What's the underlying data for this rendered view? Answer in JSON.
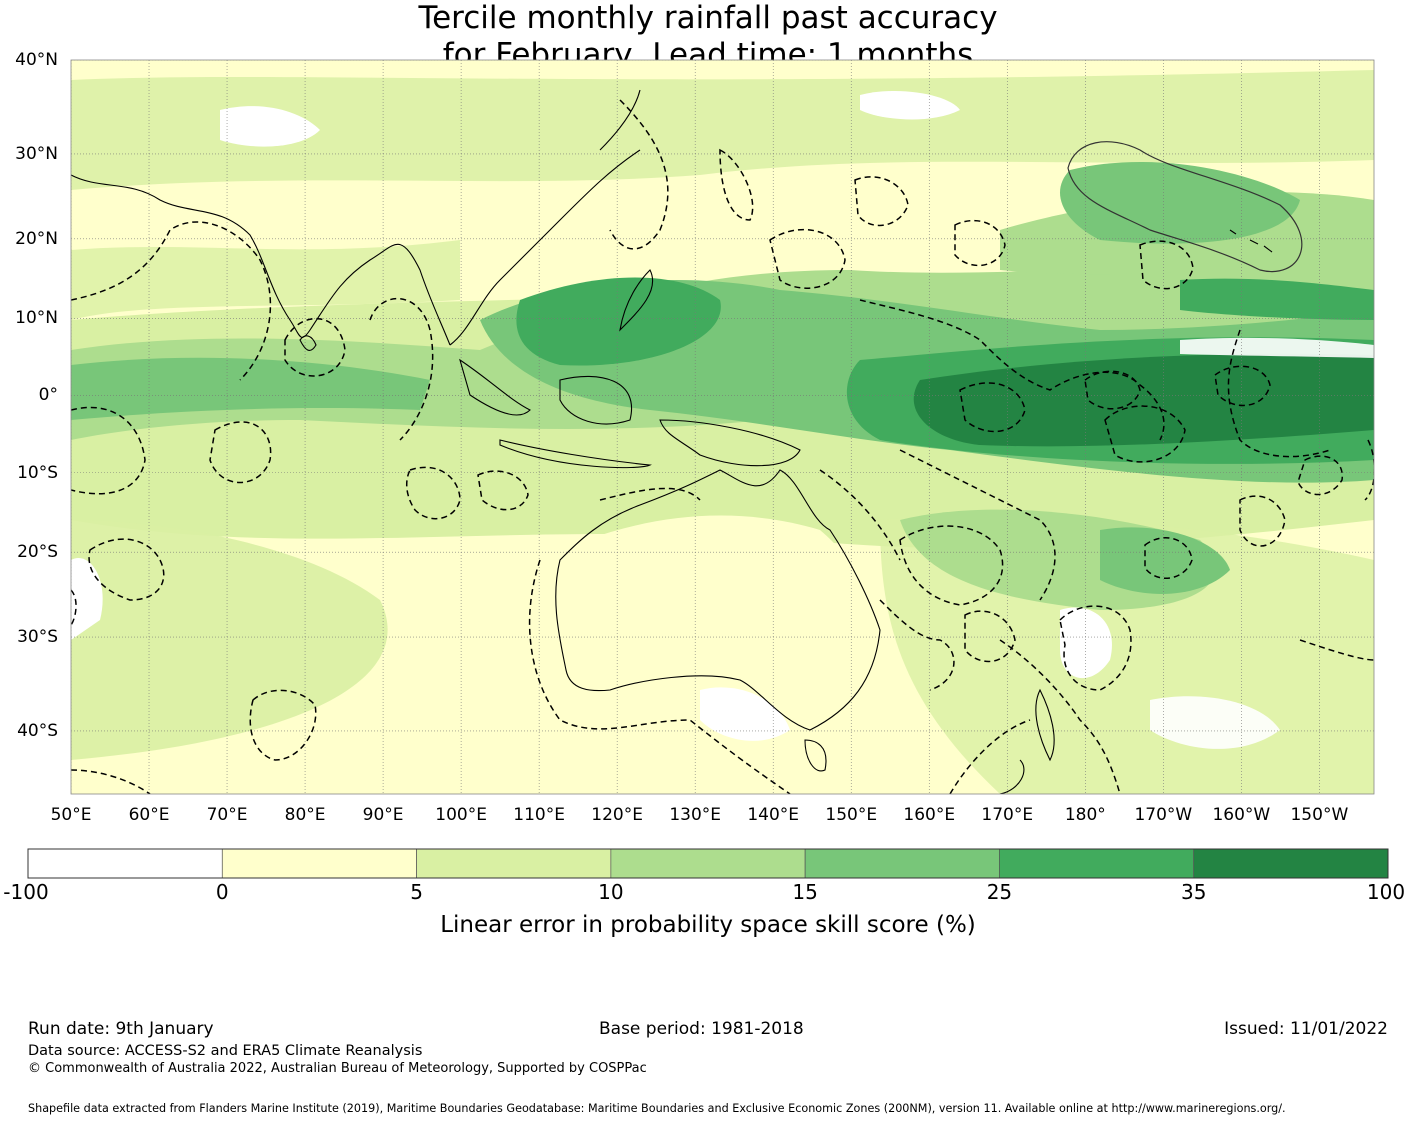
{
  "title": {
    "line1": "Tercile monthly rainfall past accuracy",
    "line2": "for February, Lead time: 1 months"
  },
  "axes": {
    "lat_labels": [
      "40°N",
      "30°N",
      "20°N",
      "10°N",
      "0°",
      "10°S",
      "20°S",
      "30°S",
      "40°S"
    ],
    "lat_values": [
      40,
      30,
      20,
      10,
      0,
      -10,
      -20,
      -30,
      -40
    ],
    "lon_labels": [
      "50°E",
      "60°E",
      "70°E",
      "80°E",
      "90°E",
      "100°E",
      "110°E",
      "120°E",
      "130°E",
      "140°E",
      "150°E",
      "160°E",
      "170°E",
      "180°",
      "170°W",
      "160°W",
      "150°W"
    ],
    "lon_values": [
      50,
      60,
      70,
      80,
      90,
      100,
      110,
      120,
      130,
      140,
      150,
      160,
      170,
      180,
      190,
      200,
      210
    ],
    "lon_range": [
      50,
      217
    ],
    "lat_range": [
      -46,
      40
    ]
  },
  "colorbar": {
    "ticks": [
      "-100",
      "0",
      "5",
      "10",
      "15",
      "25",
      "35",
      "100"
    ],
    "colors": [
      "#ffffff",
      "#ffffcc",
      "#d9f0a3",
      "#addd8e",
      "#78c679",
      "#41ab5d",
      "#238443"
    ],
    "label": "Linear error in probability space skill score (%)"
  },
  "footer": {
    "run_date": "Run date: 9th January",
    "base_period": "Base period: 1981-2018",
    "issued": "Issued: 11/01/2022",
    "data_source": "Data source: ACCESS-S2 and ERA5 Climate Reanalysis",
    "copyright": "© Commonwealth of Australia 2022, Australian Bureau of Meteorology, Supported by COSPPac",
    "shapefile": "Shapefile data extracted from Flanders Marine Institute (2019), Maritime Boundaries Geodatabase: Maritime Boundaries and Exclusive Economic Zones (200NM), version 11. Available online at http://www.marineregions.org/."
  }
}
